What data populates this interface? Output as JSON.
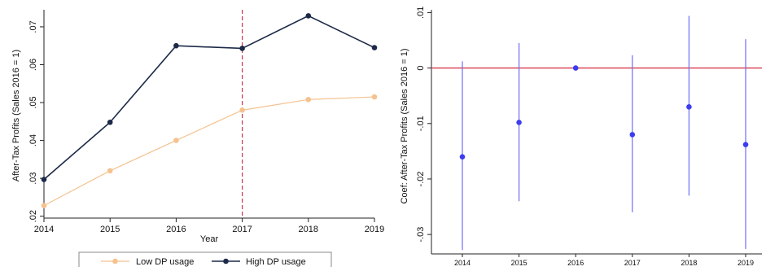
{
  "chart_data": [
    {
      "type": "line",
      "xlabel": "Year",
      "ylabel": "After-Tax Profits (Sales 2016 = 1)",
      "x": [
        2014,
        2015,
        2016,
        2017,
        2018,
        2019
      ],
      "x_tick_labels": [
        "2014",
        "2015",
        "2016",
        "2017",
        "2018",
        "2019"
      ],
      "xlim": [
        2014,
        2019
      ],
      "ylim": [
        0.0195,
        0.0745
      ],
      "y_ticks": [
        0.02,
        0.03,
        0.04,
        0.05,
        0.06,
        0.07
      ],
      "y_tick_labels": [
        ".02",
        ".03",
        ".04",
        ".05",
        ".06",
        ".07"
      ],
      "vline": {
        "x": 2017,
        "color": "#c8334a",
        "style": "dashed"
      },
      "series": [
        {
          "name": "Low DP usage",
          "color": "#f5c28f",
          "values": [
            0.0228,
            0.032,
            0.04,
            0.048,
            0.0508,
            0.0515
          ]
        },
        {
          "name": "High DP usage",
          "color": "#1c2a48",
          "values": [
            0.0297,
            0.0448,
            0.065,
            0.0643,
            0.0729,
            0.0645
          ]
        }
      ],
      "legend": {
        "position": "bottom",
        "labels": [
          "Low DP usage",
          "High DP usage"
        ]
      },
      "grid": false
    },
    {
      "type": "scatter",
      "subtype": "coefficient plot with confidence intervals",
      "ylabel": "Coef: After-Tax Profits (Sales 2016 = 1)",
      "x": [
        2014,
        2015,
        2016,
        2017,
        2018,
        2019
      ],
      "x_tick_labels": [
        "2014",
        "2015",
        "2016",
        "2017",
        "2018",
        "2019"
      ],
      "ylim": [
        -0.0335,
        0.0105
      ],
      "y_ticks": [
        -0.03,
        -0.02,
        -0.01,
        0,
        0.01
      ],
      "y_tick_labels": [
        "-.03",
        "-.02",
        "-.01",
        "0",
        ".01"
      ],
      "hline": {
        "y": 0,
        "color": "#d9384f"
      },
      "series": [
        {
          "color": "#3d3df0",
          "values": [
            -0.016,
            -0.0098,
            0.0,
            -0.012,
            -0.007,
            -0.0138
          ],
          "ci_low": [
            -0.0328,
            -0.024,
            0.0,
            -0.026,
            -0.023,
            -0.0326
          ],
          "ci_high": [
            0.0012,
            0.0045,
            0.0,
            0.0023,
            0.0094,
            0.0052
          ]
        }
      ],
      "grid": false
    }
  ]
}
